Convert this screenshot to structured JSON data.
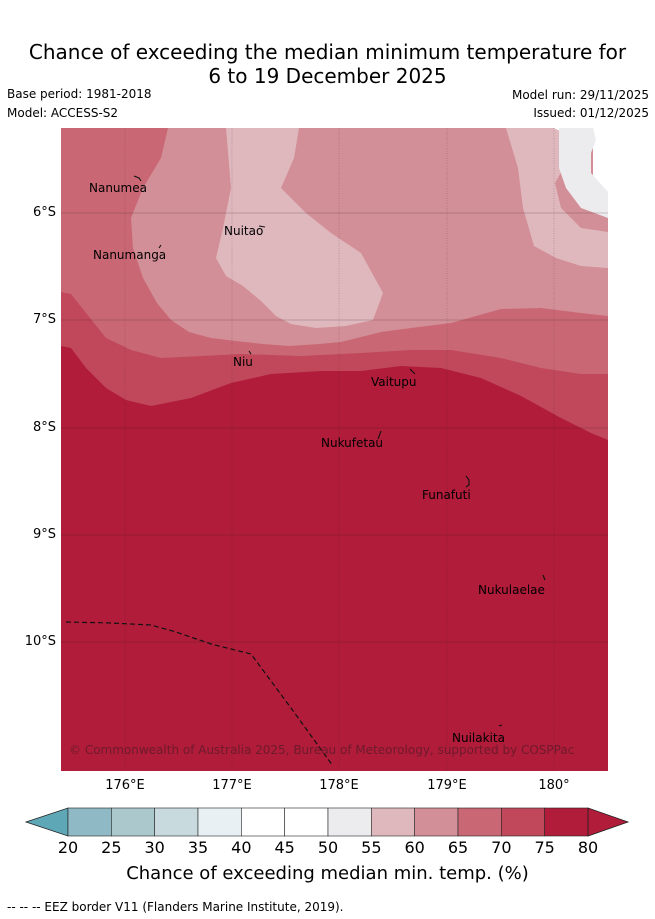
{
  "header": {
    "title_line1": "Chance of exceeding the median minimum temperature for",
    "title_line2": "6 to 19 December 2025",
    "base_period": "Base period: 1981-2018",
    "model": "Model: ACCESS-S2",
    "model_run": "Model run: 29/11/2025",
    "issued": "Issued: 01/12/2025"
  },
  "map": {
    "lat_labels": [
      "6°S",
      "7°S",
      "8°S",
      "9°S",
      "10°S"
    ],
    "lon_labels": [
      "176°E",
      "177°E",
      "178°E",
      "179°E",
      "180°"
    ],
    "islands": [
      "Nanumea",
      "Nuitao",
      "Nanumanga",
      "Niu",
      "Vaitupu",
      "Nukufetau",
      "Funafuti",
      "Nukulaelae",
      "Nuilakita"
    ],
    "copyright": "© Commonwealth of Australia 2025, Bureau of Meteorology, supported by COSPPac"
  },
  "colorbar": {
    "ticks": [
      "20",
      "25",
      "30",
      "35",
      "40",
      "45",
      "50",
      "55",
      "60",
      "65",
      "70",
      "75",
      "80"
    ],
    "label": "Chance of exceeding median min. temp. (%)",
    "colors": [
      "#6aacb9",
      "#8fbac5",
      "#abc8cd",
      "#c8dade",
      "#e9f0f3",
      "#ffffff",
      "#ffffff",
      "#ecebee",
      "#dfb8be",
      "#d38f97",
      "#c96874",
      "#c0485a",
      "#b01c3a"
    ],
    "below_color": "#5ea7b6",
    "above_color": "#b01c3a"
  },
  "legend": {
    "eez": "-- -- -- EEZ border V11 (Flanders Marine Institute, 2019)."
  }
}
